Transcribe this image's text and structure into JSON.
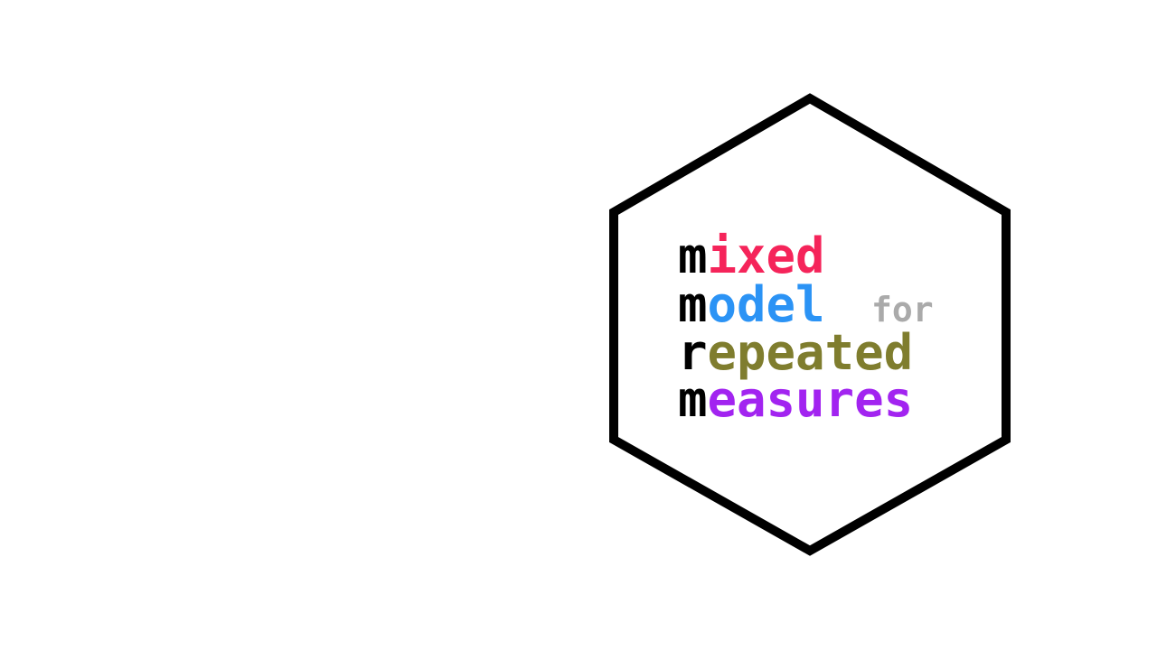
{
  "logo": {
    "lines": [
      {
        "lead": "m",
        "rest": "ixed",
        "rest_color": "#f5245a"
      },
      {
        "lead": "m",
        "rest": "odel",
        "rest_color": "#2b93f5"
      },
      {
        "lead": "r",
        "rest": "epeated",
        "rest_color": "#7f7d2e"
      },
      {
        "lead": "m",
        "rest": "easures",
        "rest_color": "#a224f0"
      }
    ],
    "connector": "for",
    "connector_color": "#aaaaaa",
    "lead_color": "#000000",
    "border_color": "#000000"
  }
}
